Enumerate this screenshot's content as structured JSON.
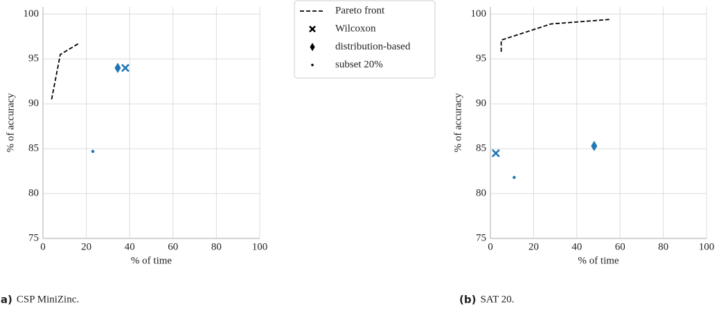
{
  "chart_data": [
    {
      "type": "scatter",
      "xlabel": "% of time",
      "ylabel": "% of accuracy",
      "caption_label": "(a)",
      "caption": "CSP MiniZinc.",
      "xlim": [
        0,
        100
      ],
      "ylim": [
        75,
        100.8
      ],
      "xticks": [
        0,
        20,
        40,
        60,
        80,
        100
      ],
      "yticks": [
        75,
        80,
        85,
        90,
        95,
        100
      ],
      "grid": true,
      "series": [
        {
          "name": "Pareto front",
          "marker": "line",
          "color": "#000000",
          "x": [
            4,
            8,
            17
          ],
          "values": [
            90.5,
            95.5,
            96.8
          ]
        },
        {
          "name": "Wilcoxon",
          "marker": "x",
          "color": "#1f77b4",
          "x": [
            38
          ],
          "values": [
            94
          ]
        },
        {
          "name": "distribution-based",
          "marker": "diamond",
          "color": "#1f77b4",
          "x": [
            34.5
          ],
          "values": [
            94
          ]
        },
        {
          "name": "subset 20%",
          "marker": "dot",
          "color": "#1f77b4",
          "x": [
            23
          ],
          "values": [
            84.7
          ]
        }
      ]
    },
    {
      "type": "scatter",
      "xlabel": "% of time",
      "ylabel": "% of accuracy",
      "caption_label": "(b)",
      "caption": "SAT 20.",
      "xlim": [
        0,
        100
      ],
      "ylim": [
        75,
        100.8
      ],
      "xticks": [
        0,
        20,
        40,
        60,
        80,
        100
      ],
      "yticks": [
        75,
        80,
        85,
        90,
        95,
        100
      ],
      "grid": true,
      "series": [
        {
          "marker": "line",
          "color": "#000000",
          "x": [
            5,
            5,
            28,
            55
          ],
          "values": [
            95.8,
            97.1,
            98.9,
            99.4
          ]
        },
        {
          "marker": "x",
          "color": "#1f77b4",
          "x": [
            2.5
          ],
          "values": [
            84.5
          ]
        },
        {
          "marker": "diamond",
          "color": "#1f77b4",
          "x": [
            48
          ],
          "values": [
            85.3
          ]
        },
        {
          "marker": "dot",
          "color": "#1f77b4",
          "x": [
            11
          ],
          "values": [
            81.8
          ]
        }
      ]
    }
  ]
}
